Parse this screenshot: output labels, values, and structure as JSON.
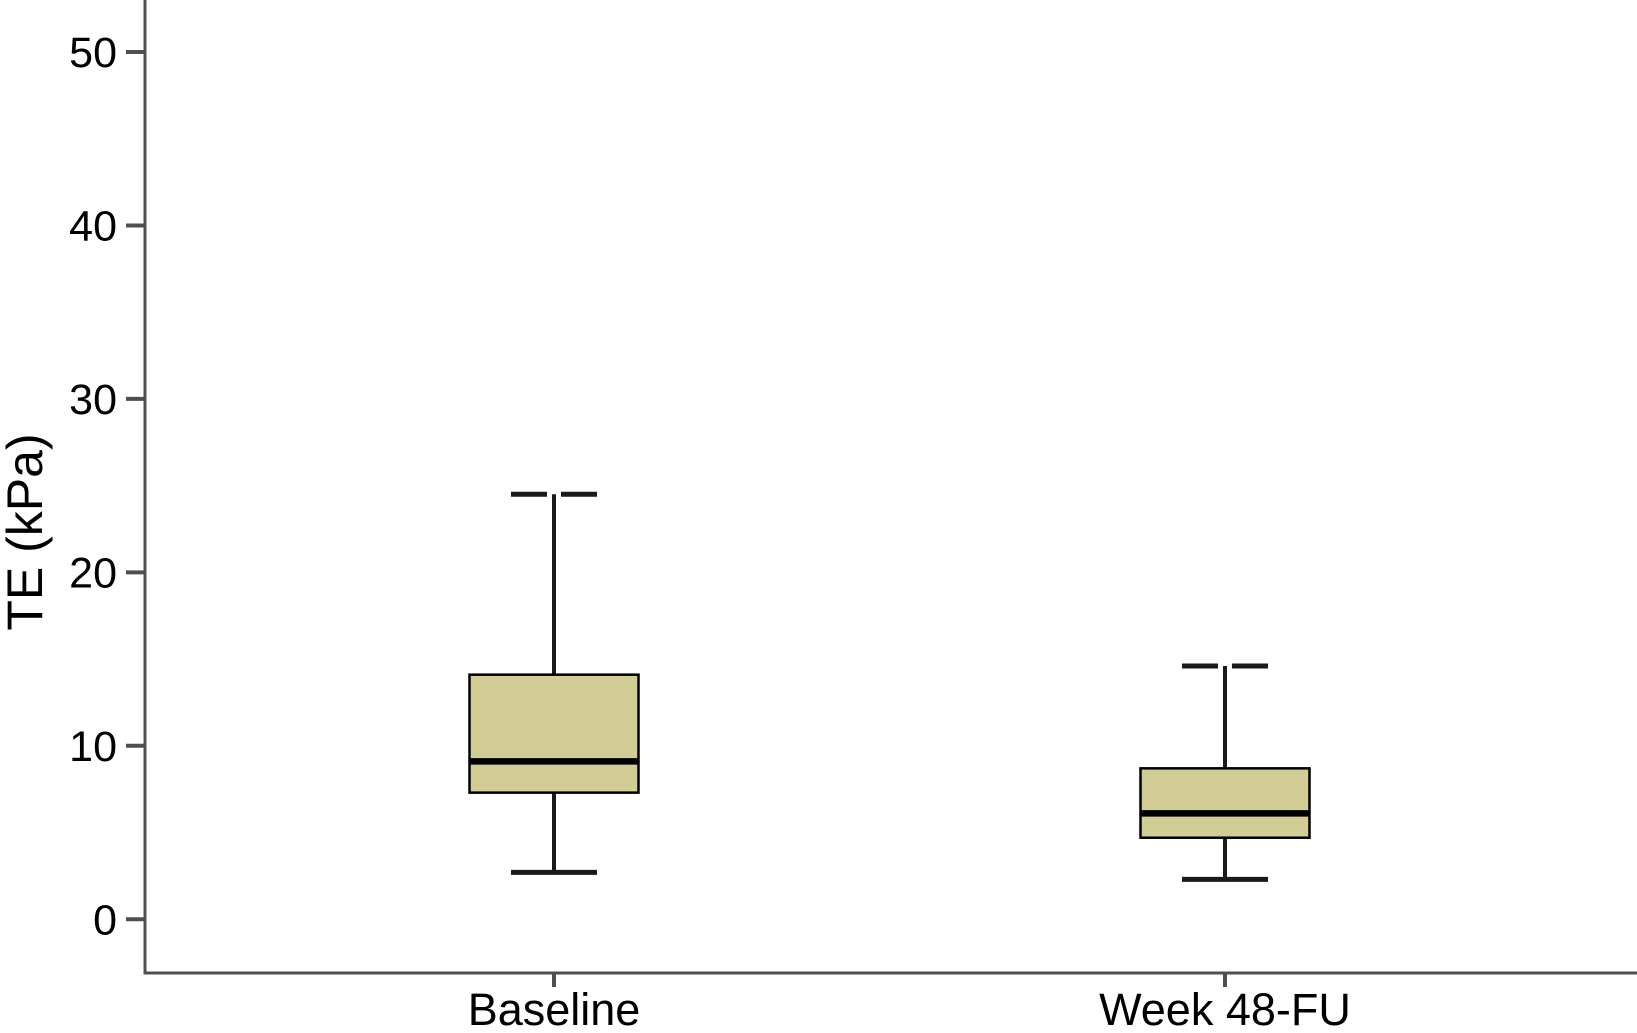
{
  "figure": {
    "background": "#ffffff"
  },
  "chart_data": {
    "type": "boxplot",
    "title": "",
    "xlabel": "",
    "ylabel": "TE (kPa)",
    "ylim": [
      -3.1,
      53.0
    ],
    "yticks": [
      0,
      10,
      20,
      30,
      40,
      50
    ],
    "categories": [
      "Baseline",
      "Week 48-FU"
    ],
    "series": [
      {
        "name": "Baseline",
        "whisker_low": 2.7,
        "q1": 7.3,
        "median": 9.1,
        "q3": 14.1,
        "whisker_high": 24.5
      },
      {
        "name": "Week 48-FU",
        "whisker_low": 2.3,
        "q1": 4.7,
        "median": 6.1,
        "q3": 8.7,
        "whisker_high": 14.6
      }
    ],
    "grid": false,
    "legend": null,
    "colors": {
      "box_fill": "#d2cd96",
      "box_border": "#000000",
      "median": "#000000",
      "whisker": "#1a1a1a",
      "axis": "#4f4f4f",
      "text": "#000000"
    }
  }
}
